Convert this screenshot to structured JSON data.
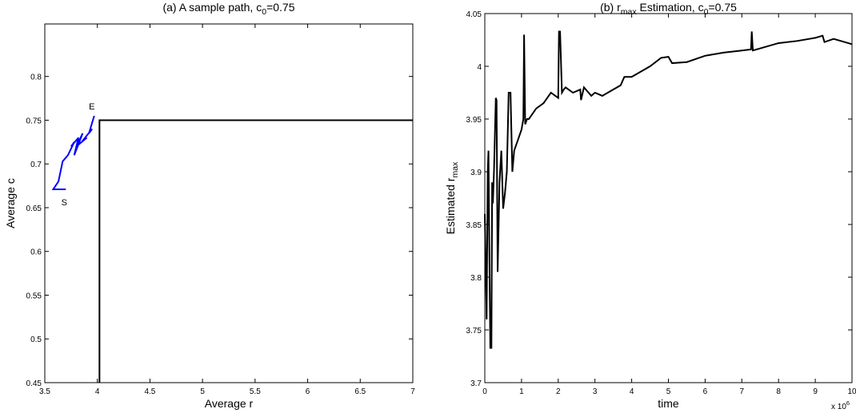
{
  "chart_data": [
    {
      "type": "line",
      "title": [
        {
          "text": "(a)  A sample path, c"
        },
        {
          "text": "0",
          "sub": true
        },
        {
          "text": "=0.75"
        }
      ],
      "xlabel": [
        {
          "text": "Average r"
        }
      ],
      "ylabel": [
        {
          "text": "Average c"
        }
      ],
      "xlim": [
        3.5,
        7
      ],
      "xticks": [
        3.5,
        4,
        4.5,
        5,
        5.5,
        6,
        6.5,
        7
      ],
      "ylim": [
        0.45,
        0.86
      ],
      "yticks": [
        0.45,
        0.5,
        0.55,
        0.6,
        0.65,
        0.7,
        0.75,
        0.8
      ],
      "series": [
        {
          "color": "#000000",
          "x": [
            4.02,
            4.02,
            7
          ],
          "values": [
            0.45,
            0.75,
            0.75
          ]
        },
        {
          "color": "#0000ff",
          "start_label": "S",
          "end_label": "E",
          "x": [
            3.7,
            3.58,
            3.63,
            3.67,
            3.72,
            3.78,
            3.75,
            3.82,
            3.78,
            3.86,
            3.8,
            3.9,
            3.85,
            3.95,
            3.92,
            3.97
          ],
          "values": [
            0.671,
            0.671,
            0.68,
            0.703,
            0.71,
            0.725,
            0.72,
            0.73,
            0.71,
            0.735,
            0.72,
            0.73,
            0.725,
            0.74,
            0.735,
            0.755
          ]
        }
      ]
    },
    {
      "type": "line",
      "title": [
        {
          "text": "(b)  r"
        },
        {
          "text": "max",
          "sub": true
        },
        {
          "text": " Estimation, c"
        },
        {
          "text": "0",
          "sub": true
        },
        {
          "text": "=0.75"
        }
      ],
      "xlabel": [
        {
          "text": "time"
        }
      ],
      "ylabel": [
        {
          "text": "Estimated r"
        },
        {
          "text": "max",
          "sub": true
        }
      ],
      "x_multiplier": [
        {
          "text": "x 10"
        },
        {
          "text": "6",
          "sup": true
        }
      ],
      "xlim": [
        0,
        10
      ],
      "xticks": [
        0,
        1,
        2,
        3,
        4,
        5,
        6,
        7,
        8,
        9,
        10
      ],
      "ylim": [
        3.7,
        4.05
      ],
      "yticks": [
        3.7,
        3.75,
        3.8,
        3.85,
        3.9,
        3.95,
        4,
        4.05
      ],
      "series": [
        {
          "color": "#000000",
          "x": [
            0,
            0.05,
            0.08,
            0.1,
            0.12,
            0.15,
            0.18,
            0.2,
            0.22,
            0.25,
            0.3,
            0.32,
            0.35,
            0.4,
            0.45,
            0.5,
            0.55,
            0.6,
            0.65,
            0.7,
            0.75,
            0.8,
            0.9,
            1.0,
            1.05,
            1.07,
            1.1,
            1.15,
            1.2,
            1.4,
            1.6,
            1.8,
            2.0,
            2.02,
            2.05,
            2.1,
            2.15,
            2.2,
            2.4,
            2.6,
            2.62,
            2.7,
            2.9,
            3.0,
            3.2,
            3.5,
            3.7,
            3.8,
            4.0,
            4.5,
            4.8,
            5.0,
            5.1,
            5.5,
            6.0,
            6.5,
            7.0,
            7.25,
            7.27,
            7.3,
            7.5,
            8.0,
            8.5,
            9.0,
            9.2,
            9.25,
            9.5,
            10
          ],
          "values": [
            3.86,
            3.76,
            3.9,
            3.92,
            3.84,
            3.733,
            3.733,
            3.89,
            3.87,
            3.9,
            3.97,
            3.968,
            3.805,
            3.89,
            3.92,
            3.865,
            3.88,
            3.9,
            3.975,
            3.975,
            3.9,
            3.92,
            3.93,
            3.94,
            3.95,
            4.03,
            3.945,
            3.95,
            3.95,
            3.96,
            3.965,
            3.975,
            3.97,
            4.033,
            4.033,
            3.975,
            3.978,
            3.98,
            3.975,
            3.978,
            3.968,
            3.98,
            3.972,
            3.975,
            3.972,
            3.978,
            3.982,
            3.99,
            3.99,
            4.0,
            4.008,
            4.009,
            4.003,
            4.004,
            4.01,
            4.013,
            4.015,
            4.016,
            4.033,
            4.015,
            4.017,
            4.022,
            4.024,
            4.027,
            4.029,
            4.023,
            4.026,
            4.021
          ]
        }
      ]
    }
  ]
}
